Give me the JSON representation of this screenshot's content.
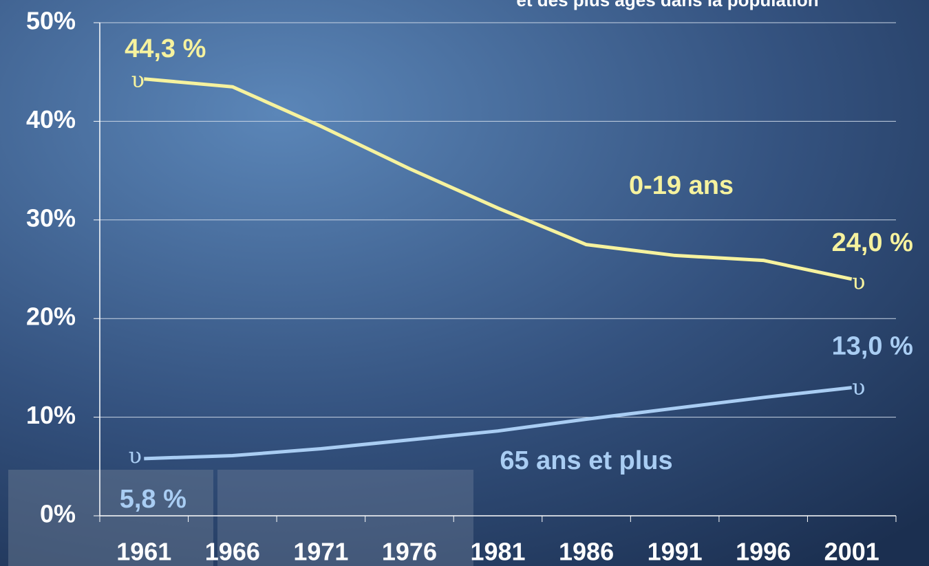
{
  "chart_data": {
    "type": "line",
    "title": "et des plus âgés dans la population",
    "categories": [
      "1961",
      "1966",
      "1971",
      "1976",
      "1981",
      "1986",
      "1991",
      "1996",
      "2001"
    ],
    "series": [
      {
        "name": "0-19 ans",
        "color": "#f6f29e",
        "values": [
          44.3,
          43.5,
          39.5,
          35.2,
          31.2,
          27.5,
          26.4,
          25.9,
          24.0
        ],
        "value_labels": [
          "44,3 %",
          null,
          null,
          null,
          null,
          null,
          null,
          null,
          "24,0 %"
        ]
      },
      {
        "name": "65 ans et plus",
        "color": "#a9cdf3",
        "values": [
          5.8,
          6.1,
          6.8,
          7.7,
          8.6,
          9.8,
          10.9,
          12.0,
          13.0
        ],
        "value_labels": [
          "5,8 %",
          null,
          null,
          null,
          null,
          null,
          null,
          null,
          "13,0 %"
        ]
      }
    ],
    "marker_text": "υ",
    "ylim": [
      0,
      50
    ],
    "yticks": [
      {
        "value": 0,
        "label": "0%"
      },
      {
        "value": 10,
        "label": "10%"
      },
      {
        "value": 20,
        "label": "20%"
      },
      {
        "value": 30,
        "label": "30%"
      },
      {
        "value": 40,
        "label": "40%"
      },
      {
        "value": 50,
        "label": "50%"
      }
    ],
    "grid": true
  }
}
